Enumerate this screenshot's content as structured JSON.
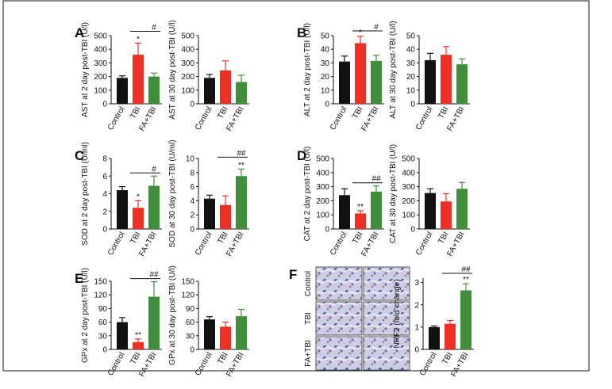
{
  "chart_data": [
    {
      "type": "bar",
      "panel": "A",
      "y_label": "AST at 2 day post-TBI (U/l)",
      "categories": [
        "Control",
        "TBI",
        "FA+TBI"
      ],
      "values": [
        190,
        360,
        200
      ],
      "errors": [
        15,
        85,
        25
      ],
      "colors": [
        "#111111",
        "#ee3024",
        "#3f8f3a"
      ],
      "ylim": [
        0,
        500
      ],
      "yticks": [
        0,
        100,
        200,
        300,
        400,
        500
      ],
      "markers": [
        null,
        "*",
        null
      ],
      "bracket": "#"
    },
    {
      "type": "bar",
      "y_label": "AST at 30 day post-TBI (U/l)",
      "categories": [
        "Control",
        "TBI",
        "FA+TBI"
      ],
      "values": [
        190,
        245,
        160
      ],
      "errors": [
        25,
        70,
        50
      ],
      "colors": [
        "#111111",
        "#ee3024",
        "#3f8f3a"
      ],
      "ylim": [
        0,
        500
      ],
      "yticks": [
        0,
        100,
        200,
        300,
        400,
        500
      ]
    },
    {
      "type": "bar",
      "panel": "B",
      "y_label": "ALT at 2 day post-TBI (U/l)",
      "categories": [
        "Control",
        "TBI",
        "FA+TBI"
      ],
      "values": [
        31,
        44.5,
        31.5
      ],
      "errors": [
        4,
        5,
        4
      ],
      "colors": [
        "#111111",
        "#ee3024",
        "#3f8f3a"
      ],
      "ylim": [
        0,
        50
      ],
      "yticks": [
        0,
        10,
        20,
        30,
        40,
        50
      ],
      "markers": [
        null,
        "*",
        null
      ],
      "bracket": "#"
    },
    {
      "type": "bar",
      "y_label": "ALT at 30 day post-TBI (U/l)",
      "categories": [
        "Control",
        "TBI",
        "FA+TBI"
      ],
      "values": [
        32,
        36,
        29
      ],
      "errors": [
        5,
        6,
        4
      ],
      "colors": [
        "#111111",
        "#ee3024",
        "#3f8f3a"
      ],
      "ylim": [
        0,
        50
      ],
      "yticks": [
        0,
        10,
        20,
        30,
        40,
        50
      ]
    },
    {
      "type": "bar",
      "panel": "C",
      "y_label": "SOD at 2 day post-TBI (U/ml)",
      "categories": [
        "Control",
        "TBI",
        "FA+TBI"
      ],
      "values": [
        4.4,
        2.4,
        4.9
      ],
      "errors": [
        0.4,
        0.8,
        1.1
      ],
      "colors": [
        "#111111",
        "#ee3024",
        "#3f8f3a"
      ],
      "ylim": [
        0,
        8
      ],
      "yticks": [
        0,
        2,
        4,
        6,
        8
      ],
      "markers": [
        null,
        "*",
        null
      ],
      "bracket": "#"
    },
    {
      "type": "bar",
      "y_label": "SOD at 30 day post-TBI (U/ml)",
      "categories": [
        "Control",
        "TBI",
        "FA+TBI"
      ],
      "values": [
        4.3,
        3.4,
        7.5
      ],
      "errors": [
        0.5,
        1.3,
        1.0
      ],
      "colors": [
        "#111111",
        "#ee3024",
        "#3f8f3a"
      ],
      "ylim": [
        0,
        10
      ],
      "yticks": [
        0,
        2,
        4,
        6,
        8,
        10
      ],
      "markers": [
        null,
        null,
        "**"
      ],
      "bracket": "##"
    },
    {
      "type": "bar",
      "panel": "D",
      "y_label": "CAT at 2 day post-TBI (U/l)",
      "categories": [
        "Control",
        "TBI",
        "FA+TBI"
      ],
      "values": [
        240,
        110,
        265
      ],
      "errors": [
        45,
        20,
        40
      ],
      "colors": [
        "#111111",
        "#ee3024",
        "#3f8f3a"
      ],
      "ylim": [
        0,
        500
      ],
      "yticks": [
        0,
        100,
        200,
        300,
        400,
        500
      ],
      "markers": [
        null,
        "**",
        null
      ],
      "bracket": "##"
    },
    {
      "type": "bar",
      "y_label": "CAT at 30 day post-TBI (U/l)",
      "categories": [
        "Control",
        "TBI",
        "FA+TBI"
      ],
      "values": [
        255,
        195,
        285
      ],
      "errors": [
        30,
        55,
        45
      ],
      "colors": [
        "#111111",
        "#ee3024",
        "#3f8f3a"
      ],
      "ylim": [
        0,
        500
      ],
      "yticks": [
        0,
        100,
        200,
        300,
        400,
        500
      ]
    },
    {
      "type": "bar",
      "panel": "E",
      "y_label": "GPx at 2 day post-TBI (U/l)",
      "categories": [
        "Control",
        "TBI",
        "FA+TBI"
      ],
      "values": [
        60,
        16,
        116
      ],
      "errors": [
        10,
        7,
        33
      ],
      "colors": [
        "#111111",
        "#ee3024",
        "#3f8f3a"
      ],
      "ylim": [
        0,
        150
      ],
      "yticks": [
        0,
        30,
        60,
        90,
        120,
        150
      ],
      "markers": [
        null,
        "**",
        null
      ],
      "bracket": "##"
    },
    {
      "type": "bar",
      "y_label": "GPx at 30 day post-TBI (U/l)",
      "categories": [
        "Control",
        "TBI",
        "FA+TBI"
      ],
      "values": [
        66,
        50,
        73
      ],
      "errors": [
        6,
        10,
        15
      ],
      "colors": [
        "#111111",
        "#ee3024",
        "#3f8f3a"
      ],
      "ylim": [
        0,
        150
      ],
      "yticks": [
        0,
        30,
        60,
        90,
        120,
        150
      ]
    },
    {
      "type": "bar",
      "y_label": "NRF2 (fold change)",
      "categories": [
        "Control",
        "TBI",
        "FA+TBI"
      ],
      "values": [
        1.0,
        1.15,
        2.65
      ],
      "errors": [
        0.05,
        0.15,
        0.3
      ],
      "colors": [
        "#111111",
        "#ee3024",
        "#3f8f3a"
      ],
      "ylim": [
        0,
        3.2
      ],
      "yticks": [
        0,
        1,
        2,
        3
      ],
      "markers": [
        null,
        null,
        "**"
      ],
      "bracket": "##"
    }
  ],
  "image_panel": {
    "panel": "F",
    "row_labels": [
      "Control",
      "TBI",
      "FA+TBI"
    ]
  }
}
